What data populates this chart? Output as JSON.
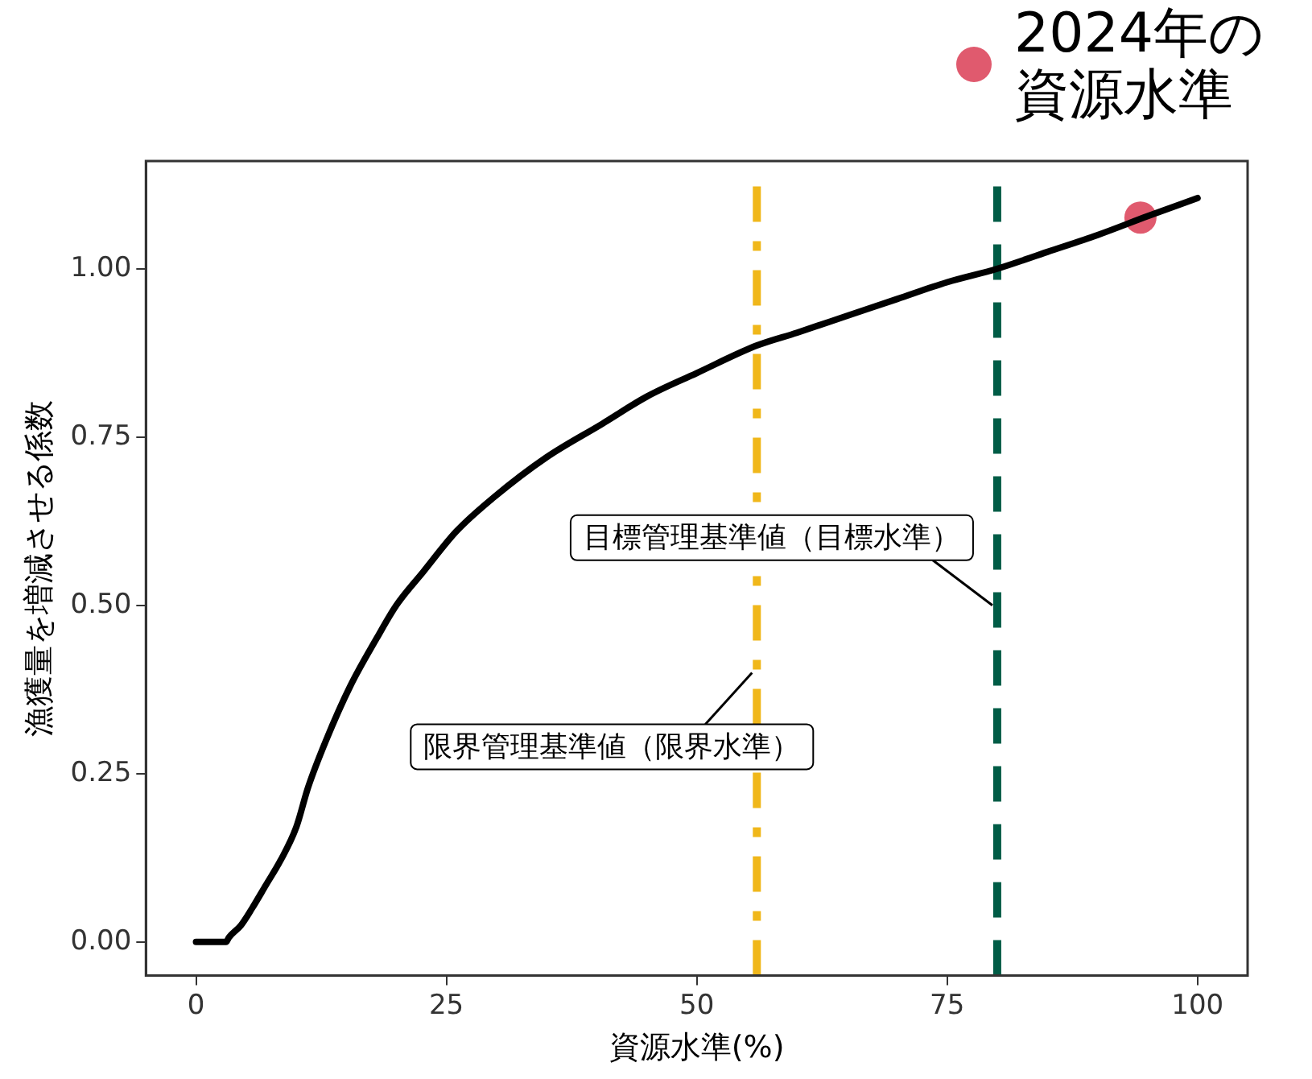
{
  "chart_data": {
    "type": "line",
    "xlabel": "資源水準(%)",
    "ylabel": "漁獲量を増減させる係数",
    "xlim": [
      -5,
      105
    ],
    "ylim": [
      -0.05,
      1.16
    ],
    "xticks": [
      0,
      25,
      50,
      75,
      100
    ],
    "yticks": [
      {
        "value": 0,
        "label": "0.00"
      },
      {
        "value": 0.25,
        "label": "0.25"
      },
      {
        "value": 0.5,
        "label": "0.50"
      },
      {
        "value": 0.75,
        "label": "0.75"
      },
      {
        "value": 1,
        "label": "1.00"
      }
    ],
    "grid": false,
    "legend": "top right",
    "marker": "none",
    "series": [
      {
        "color": "#000000",
        "line_style": "solid",
        "x": [
          0,
          3,
          3.3,
          4.5,
          5.6,
          7,
          8.4,
          10,
          11.2,
          13,
          15.4,
          18,
          20,
          22.7,
          26,
          29.7,
          35,
          40.6,
          45,
          50,
          56,
          60,
          65,
          70,
          75,
          80,
          85,
          90,
          95,
          100
        ],
        "values": [
          0,
          0,
          0.007,
          0.025,
          0.05,
          0.085,
          0.12,
          0.17,
          0.23,
          0.3,
          0.38,
          0.45,
          0.5,
          0.55,
          0.61,
          0.66,
          0.72,
          0.77,
          0.81,
          0.845,
          0.886,
          0.905,
          0.93,
          0.955,
          0.98,
          1.0,
          1.025,
          1.05,
          1.078,
          1.105
        ]
      },
      {
        "type": "scatter",
        "name": "2024年の資源水準",
        "color": "#e05a6e",
        "marker": "circle",
        "x": [
          94.3
        ],
        "values": [
          1.076
        ]
      }
    ],
    "ref_lines": [
      {
        "axis": "x",
        "value": 56,
        "label": "限界管理基準値（限界水準）",
        "color": "#f0b71a",
        "line_style": "dashdot"
      },
      {
        "axis": "x",
        "value": 80,
        "label": "目標管理基準値（目標水準）",
        "color": "#005c46",
        "line_style": "dashed"
      }
    ]
  }
}
